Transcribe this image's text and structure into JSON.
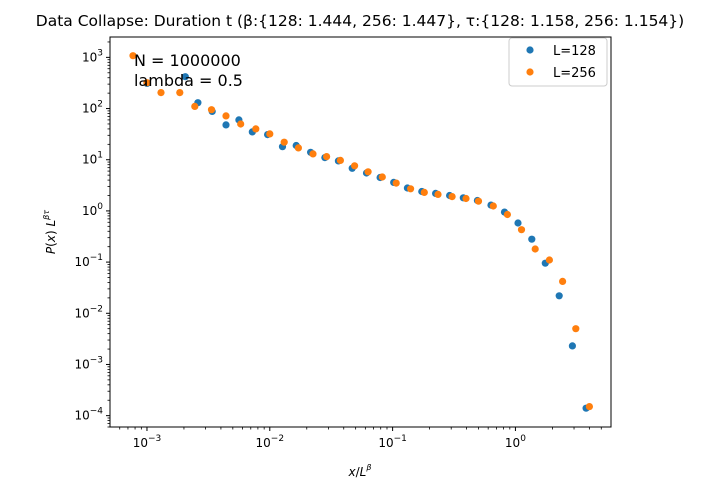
{
  "chart_data": {
    "type": "scatter",
    "title": "Data Collapse: Duration t  (β:{128: 1.444, 256: 1.447}, τ:{128: 1.158, 256: 1.154})",
    "xlabel_parts": [
      "x",
      "/",
      "L",
      "β"
    ],
    "ylabel_parts": [
      "P",
      "(",
      "x",
      ")",
      " L",
      "βτ"
    ],
    "xscale": "log",
    "yscale": "log",
    "xlim": [
      0.0005,
      6
    ],
    "ylim": [
      6e-05,
      2500
    ],
    "x_ticks": [
      {
        "base": "10",
        "exp": "−3",
        "value": 0.001
      },
      {
        "base": "10",
        "exp": "−2",
        "value": 0.01
      },
      {
        "base": "10",
        "exp": "−1",
        "value": 0.1
      },
      {
        "base": "10",
        "exp": "0",
        "value": 1
      }
    ],
    "y_ticks": [
      {
        "base": "10",
        "exp": "−4",
        "value": 0.0001
      },
      {
        "base": "10",
        "exp": "−3",
        "value": 0.001
      },
      {
        "base": "10",
        "exp": "−2",
        "value": 0.01
      },
      {
        "base": "10",
        "exp": "−1",
        "value": 0.1
      },
      {
        "base": "10",
        "exp": "0",
        "value": 1
      },
      {
        "base": "10",
        "exp": "1",
        "value": 10
      },
      {
        "base": "10",
        "exp": "2",
        "value": 100
      },
      {
        "base": "10",
        "exp": "3",
        "value": 1000
      }
    ],
    "annotations": [
      "N = 1000000",
      "lambda = 0.5"
    ],
    "legend_position": "upper right",
    "grid": false,
    "series": [
      {
        "name": "L=128",
        "color": "#1f77b4",
        "points": [
          [
            0.001,
            310
          ],
          [
            0.00205,
            420
          ],
          [
            0.0026,
            130
          ],
          [
            0.0034,
            88
          ],
          [
            0.0044,
            48
          ],
          [
            0.0056,
            60
          ],
          [
            0.0072,
            35
          ],
          [
            0.0096,
            31
          ],
          [
            0.0127,
            18
          ],
          [
            0.0164,
            19
          ],
          [
            0.0215,
            14
          ],
          [
            0.0281,
            11
          ],
          [
            0.0362,
            9.5
          ],
          [
            0.0469,
            6.8
          ],
          [
            0.0613,
            5.5
          ],
          [
            0.0791,
            4.5
          ],
          [
            0.102,
            3.6
          ],
          [
            0.132,
            2.8
          ],
          [
            0.173,
            2.4
          ],
          [
            0.224,
            2.2
          ],
          [
            0.291,
            2.0
          ],
          [
            0.376,
            1.8
          ],
          [
            0.49,
            1.6
          ],
          [
            0.632,
            1.3
          ],
          [
            0.815,
            0.95
          ],
          [
            1.05,
            0.58
          ],
          [
            1.36,
            0.28
          ],
          [
            1.75,
            0.095
          ],
          [
            2.27,
            0.022
          ],
          [
            2.91,
            0.0023
          ],
          [
            3.76,
            0.00014
          ]
        ]
      },
      {
        "name": "L=256",
        "color": "#ff7f0e",
        "points": [
          [
            0.00077,
            1080
          ],
          [
            0.001,
            320
          ],
          [
            0.0013,
            205
          ],
          [
            0.00185,
            205
          ],
          [
            0.00245,
            110
          ],
          [
            0.00335,
            95
          ],
          [
            0.0044,
            72
          ],
          [
            0.0058,
            50
          ],
          [
            0.0077,
            40
          ],
          [
            0.01,
            32
          ],
          [
            0.0131,
            22
          ],
          [
            0.0171,
            17
          ],
          [
            0.0225,
            13
          ],
          [
            0.029,
            11.5
          ],
          [
            0.0376,
            9.7
          ],
          [
            0.049,
            7.6
          ],
          [
            0.0632,
            5.8
          ],
          [
            0.0825,
            4.6
          ],
          [
            0.107,
            3.5
          ],
          [
            0.14,
            2.7
          ],
          [
            0.181,
            2.3
          ],
          [
            0.234,
            2.1
          ],
          [
            0.305,
            1.9
          ],
          [
            0.396,
            1.75
          ],
          [
            0.5,
            1.55
          ],
          [
            0.66,
            1.25
          ],
          [
            0.86,
            0.85
          ],
          [
            1.12,
            0.43
          ],
          [
            1.45,
            0.18
          ],
          [
            1.89,
            0.11
          ],
          [
            2.42,
            0.042
          ],
          [
            3.1,
            0.005
          ],
          [
            4.0,
            0.00015
          ]
        ]
      }
    ]
  }
}
